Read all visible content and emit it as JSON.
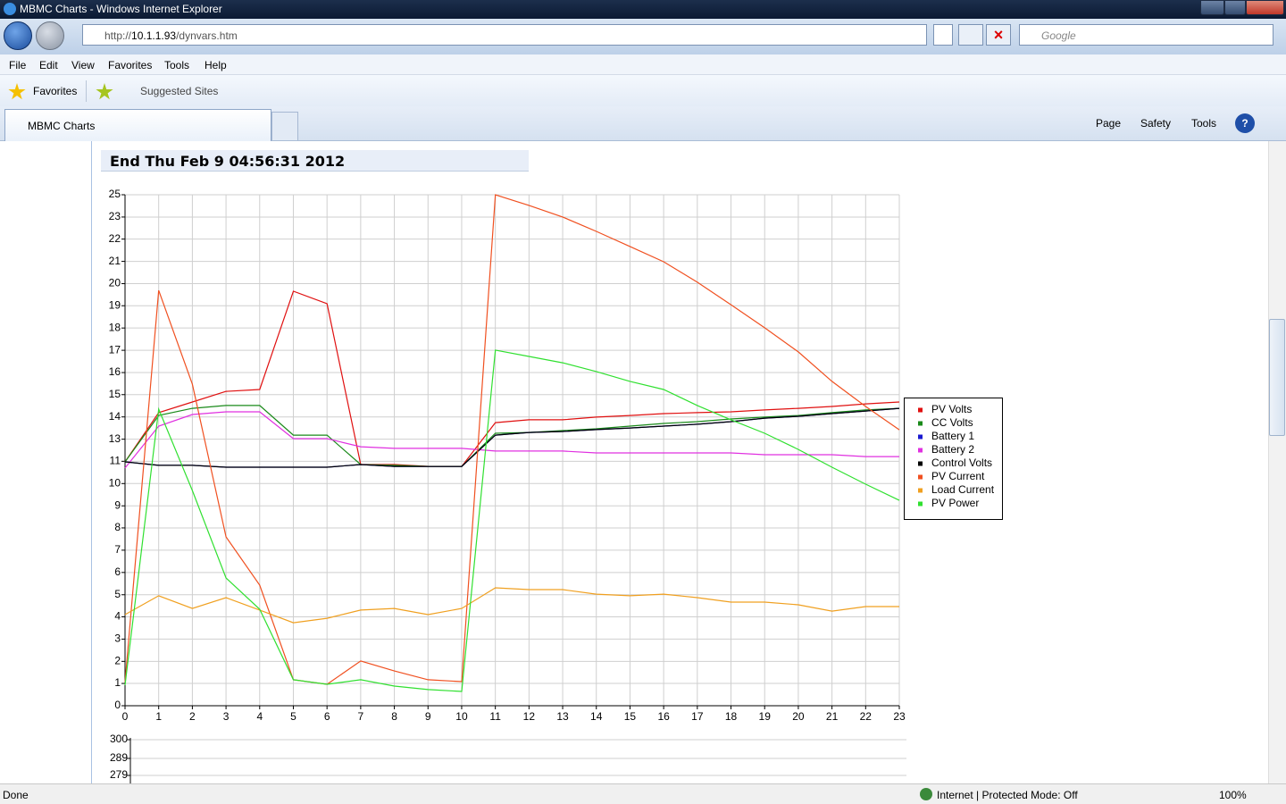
{
  "browser": {
    "window_title": "MBMC Charts - Windows Internet Explorer",
    "address_prefix": "http://",
    "address_host": "10.1.1.93",
    "address_path": "/dynvars.htm",
    "search_placeholder": "Google",
    "menu": [
      "File",
      "Edit",
      "View",
      "Favorites",
      "Tools",
      "Help"
    ],
    "favorites": "Favorites",
    "suggested_sites": "Suggested Sites",
    "tab": "MBMC Charts",
    "command_bar": [
      "Page",
      "Safety",
      "Tools"
    ],
    "status": "Done",
    "zone": "Internet | Protected Mode: Off",
    "zoom": "100%"
  },
  "page": {
    "heading": "End Thu Feb 9 04:56:31 2012"
  },
  "chart_data": [
    {
      "type": "line",
      "x": [
        0,
        1,
        2,
        3,
        4,
        5,
        6,
        7,
        8,
        9,
        10,
        11,
        12,
        13,
        14,
        15,
        16,
        17,
        18,
        19,
        20,
        21,
        22,
        23
      ],
      "xlim": [
        0,
        23
      ],
      "xticks": [
        0,
        1,
        2,
        3,
        4,
        5,
        6,
        7,
        8,
        9,
        10,
        11,
        12,
        13,
        14,
        15,
        16,
        17,
        18,
        19,
        20,
        21,
        22,
        23
      ],
      "ylim": [
        0,
        25
      ],
      "yticks": [
        0,
        {
          "value": 1.09,
          "label": "1"
        },
        {
          "value": 2.17,
          "label": "2"
        },
        {
          "value": 3.26,
          "label": "3"
        },
        {
          "value": 4.35,
          "label": "4"
        },
        {
          "value": 5.43,
          "label": "5"
        },
        {
          "value": 6.52,
          "label": "6"
        },
        {
          "value": 7.61,
          "label": "7"
        },
        {
          "value": 8.7,
          "label": "8"
        },
        {
          "value": 9.78,
          "label": "9"
        },
        {
          "value": 10.87,
          "label": "10"
        },
        {
          "value": 11.96,
          "label": "11"
        },
        {
          "value": 13.04,
          "label": "13"
        },
        {
          "value": 14.13,
          "label": "14"
        },
        {
          "value": 15.22,
          "label": "15"
        },
        {
          "value": 16.3,
          "label": "16"
        },
        {
          "value": 17.39,
          "label": "17"
        },
        {
          "value": 18.48,
          "label": "18"
        },
        {
          "value": 19.57,
          "label": "19"
        },
        {
          "value": 20.65,
          "label": "20"
        },
        {
          "value": 21.74,
          "label": "21"
        },
        {
          "value": 22.83,
          "label": "22"
        },
        {
          "value": 23.91,
          "label": "23"
        },
        25
      ],
      "grid": true,
      "legend": "right",
      "series": [
        {
          "name": "PV Volts",
          "color": "#e01010",
          "values": [
            11.93,
            14.34,
            14.86,
            15.38,
            15.47,
            20.28,
            19.67,
            11.8,
            11.8,
            11.71,
            11.71,
            13.85,
            13.99,
            13.99,
            14.12,
            14.2,
            14.29,
            14.34,
            14.38,
            14.47,
            14.55,
            14.64,
            14.77,
            14.86
          ]
        },
        {
          "name": "CC Volts",
          "color": "#1a8a1a",
          "values": [
            11.93,
            14.2,
            14.55,
            14.69,
            14.69,
            13.24,
            13.24,
            11.8,
            11.76,
            11.71,
            11.71,
            13.33,
            13.37,
            13.46,
            13.55,
            13.68,
            13.81,
            13.9,
            14.03,
            14.12,
            14.2,
            14.34,
            14.47,
            14.55
          ]
        },
        {
          "name": "Battery 1",
          "color": "#1a1ad0",
          "values": [
            11.93,
            11.76,
            11.76,
            11.67,
            11.67,
            11.67,
            11.67,
            11.8,
            11.71,
            11.71,
            11.71,
            13.24,
            13.37,
            13.42,
            13.51,
            13.59,
            13.68,
            13.77,
            13.9,
            14.07,
            14.16,
            14.29,
            14.42,
            14.55
          ]
        },
        {
          "name": "Battery 2",
          "color": "#e030e0",
          "values": [
            11.63,
            13.68,
            14.25,
            14.38,
            14.38,
            13.07,
            13.07,
            12.67,
            12.59,
            12.59,
            12.59,
            12.46,
            12.46,
            12.46,
            12.37,
            12.37,
            12.37,
            12.37,
            12.37,
            12.28,
            12.28,
            12.28,
            12.19,
            12.19
          ]
        },
        {
          "name": "Control Volts",
          "color": "#000000",
          "values": [
            11.93,
            11.76,
            11.76,
            11.67,
            11.67,
            11.67,
            11.67,
            11.8,
            11.71,
            11.71,
            11.71,
            13.24,
            13.37,
            13.42,
            13.51,
            13.59,
            13.68,
            13.77,
            13.9,
            14.07,
            14.16,
            14.29,
            14.42,
            14.55
          ]
        },
        {
          "name": "PV Current",
          "color": "#f05020",
          "values": [
            1.14,
            20.32,
            15.73,
            8.26,
            5.9,
            1.27,
            1.05,
            2.19,
            1.7,
            1.27,
            1.18,
            25,
            24.48,
            23.91,
            23.21,
            22.47,
            21.72,
            20.72,
            19.62,
            18.49,
            17.31,
            15.87,
            14.64,
            13.5
          ]
        },
        {
          "name": "Load Current",
          "color": "#f0a020",
          "values": [
            4.46,
            5.38,
            4.76,
            5.29,
            4.68,
            4.06,
            4.28,
            4.68,
            4.76,
            4.46,
            4.76,
            5.77,
            5.68,
            5.68,
            5.46,
            5.38,
            5.46,
            5.29,
            5.07,
            5.07,
            4.94,
            4.63,
            4.85,
            4.85
          ]
        },
        {
          "name": "PV Power",
          "color": "#30e030",
          "values": [
            1.01,
            14.51,
            10.53,
            6.25,
            4.72,
            1.27,
            1.05,
            1.27,
            0.96,
            0.79,
            0.7,
            17.4,
            17.09,
            16.78,
            16.35,
            15.87,
            15.47,
            14.69,
            13.99,
            13.33,
            12.54,
            11.67,
            10.84,
            10.05
          ]
        }
      ]
    },
    {
      "type": "line",
      "yticks": [
        300,
        289,
        279
      ],
      "grid": true
    }
  ]
}
